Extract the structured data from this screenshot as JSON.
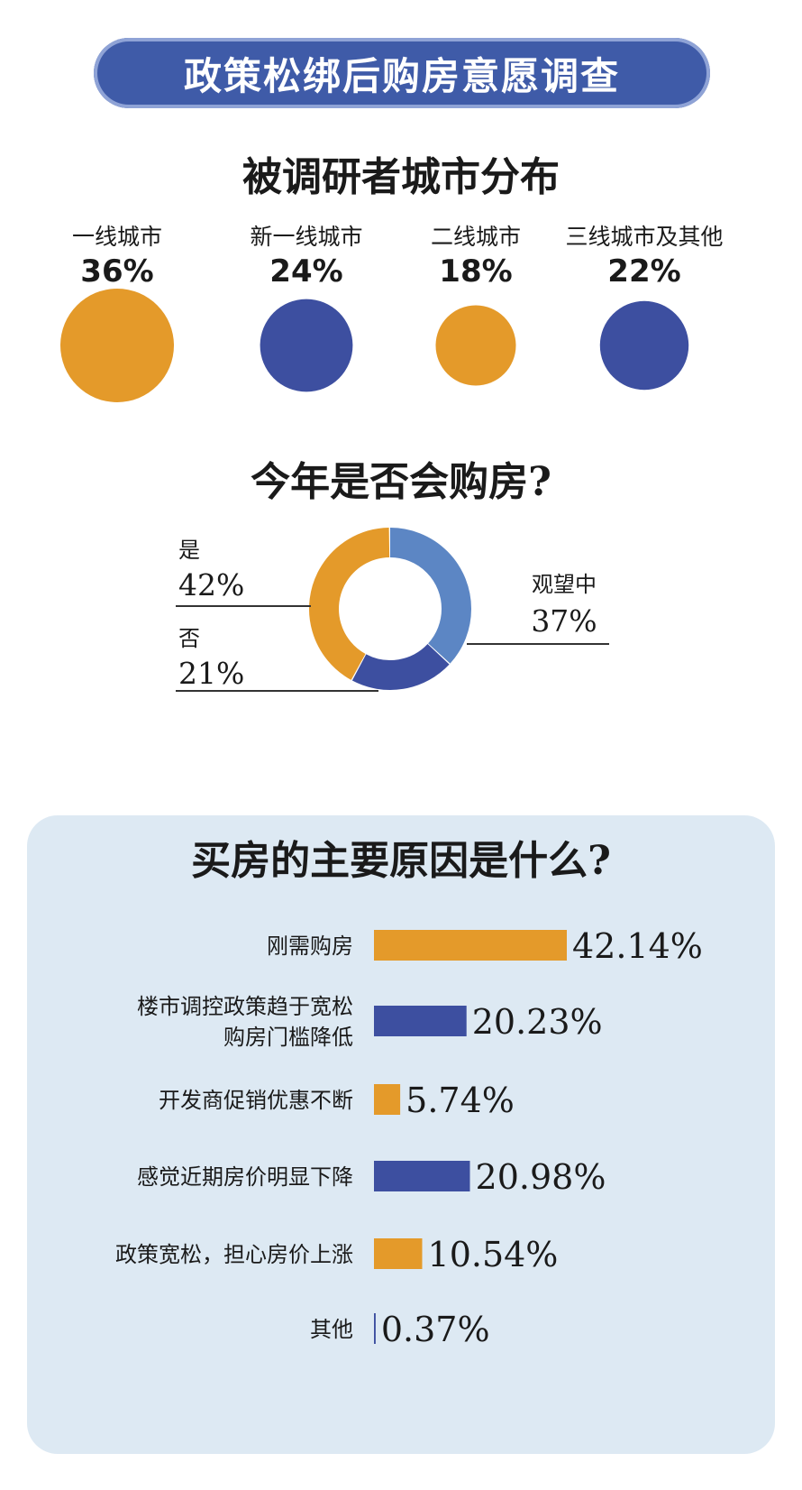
{
  "banner": {
    "title": "政策松绑后购房意愿调查"
  },
  "colors": {
    "orange": "#e49a2a",
    "blue": "#3d4fa0",
    "lightblue": "#5c86c4",
    "banner": "#3f5ba8",
    "panel": "#dde9f3"
  },
  "chart_data": [
    {
      "type": "bubble",
      "title": "被调研者城市分布",
      "categories": [
        "一线城市",
        "新一线城市",
        "二线城市",
        "三线城市及其他"
      ],
      "values": [
        36,
        24,
        18,
        22
      ],
      "labels": [
        "36%",
        "24%",
        "18%",
        "22%"
      ],
      "colors": [
        "orange",
        "blue",
        "orange",
        "blue"
      ]
    },
    {
      "type": "pie",
      "title": "今年是否会购房?",
      "categories": [
        "是",
        "否",
        "观望中"
      ],
      "values": [
        42,
        21,
        37
      ],
      "labels": [
        "42%",
        "21%",
        "37%"
      ],
      "colors": [
        "orange",
        "blue",
        "lightblue"
      ]
    },
    {
      "type": "bar",
      "title": "买房的主要原因是什么?",
      "categories": [
        [
          "刚需购房"
        ],
        [
          "楼市调控政策趋于宽松",
          "购房门槛降低"
        ],
        [
          "开发商促销优惠不断"
        ],
        [
          "感觉近期房价明显下降"
        ],
        [
          "政策宽松，担心房价上涨"
        ],
        [
          "其他"
        ]
      ],
      "values": [
        42.14,
        20.23,
        5.74,
        20.98,
        10.54,
        0.37
      ],
      "labels": [
        "42.14%",
        "20.23%",
        "5.74%",
        "20.98%",
        "10.54%",
        "0.37%"
      ],
      "colors": [
        "orange",
        "blue",
        "orange",
        "blue",
        "orange",
        "blue"
      ]
    }
  ]
}
